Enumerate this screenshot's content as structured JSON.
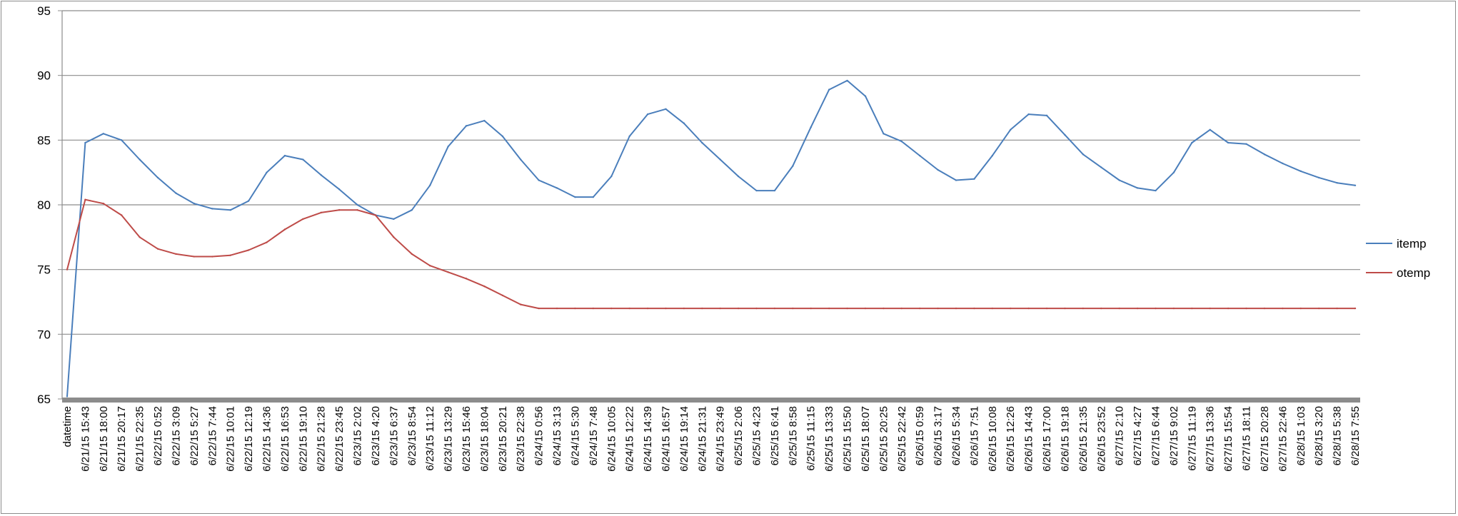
{
  "chart_data": {
    "type": "line",
    "title": "",
    "xlabel": "",
    "ylabel": "",
    "ylim": [
      65,
      95
    ],
    "yticks": [
      65,
      70,
      75,
      80,
      85,
      90,
      95
    ],
    "grid": "horizontal",
    "legend_position": "right",
    "categories": [
      "datetime",
      "6/21/15 15:43",
      "6/21/15 18:00",
      "6/21/15 20:17",
      "6/21/15 22:35",
      "6/22/15 0:52",
      "6/22/15 3:09",
      "6/22/15 5:27",
      "6/22/15 7:44",
      "6/22/15 10:01",
      "6/22/15 12:19",
      "6/22/15 14:36",
      "6/22/15 16:53",
      "6/22/15 19:10",
      "6/22/15 21:28",
      "6/22/15 23:45",
      "6/23/15 2:02",
      "6/23/15 4:20",
      "6/23/15 6:37",
      "6/23/15 8:54",
      "6/23/15 11:12",
      "6/23/15 13:29",
      "6/23/15 15:46",
      "6/23/15 18:04",
      "6/23/15 20:21",
      "6/23/15 22:38",
      "6/24/15 0:56",
      "6/24/15 3:13",
      "6/24/15 5:30",
      "6/24/15 7:48",
      "6/24/15 10:05",
      "6/24/15 12:22",
      "6/24/15 14:39",
      "6/24/15 16:57",
      "6/24/15 19:14",
      "6/24/15 21:31",
      "6/24/15 23:49",
      "6/25/15 2:06",
      "6/25/15 4:23",
      "6/25/15 6:41",
      "6/25/15 8:58",
      "6/25/15 11:15",
      "6/25/15 13:33",
      "6/25/15 15:50",
      "6/25/15 18:07",
      "6/25/15 20:25",
      "6/25/15 22:42",
      "6/26/15 0:59",
      "6/26/15 3:17",
      "6/26/15 5:34",
      "6/26/15 7:51",
      "6/26/15 10:08",
      "6/26/15 12:26",
      "6/26/15 14:43",
      "6/26/15 17:00",
      "6/26/15 19:18",
      "6/26/15 21:35",
      "6/26/15 23:52",
      "6/27/15 2:10",
      "6/27/15 4:27",
      "6/27/15 6:44",
      "6/27/15 9:02",
      "6/27/15 11:19",
      "6/27/15 13:36",
      "6/27/15 15:54",
      "6/27/15 18:11",
      "6/27/15 20:28",
      "6/27/15 22:46",
      "6/28/15 1:03",
      "6/28/15 3:20",
      "6/28/15 5:38",
      "6/28/15 7:55"
    ],
    "series": [
      {
        "name": "itemp",
        "color": "#4a7ebb",
        "values": [
          65.2,
          84.8,
          85.5,
          85.0,
          83.5,
          82.1,
          80.9,
          80.1,
          79.7,
          79.6,
          80.3,
          82.5,
          83.8,
          83.5,
          82.3,
          81.2,
          80.0,
          79.2,
          78.9,
          79.6,
          81.5,
          84.5,
          86.1,
          86.5,
          85.3,
          83.5,
          81.9,
          81.3,
          80.6,
          80.6,
          82.2,
          85.3,
          87.0,
          87.4,
          86.3,
          84.8,
          83.5,
          82.2,
          81.1,
          81.1,
          83.0,
          86.0,
          88.9,
          89.6,
          88.4,
          85.5,
          84.9,
          83.8,
          82.7,
          81.9,
          82.0,
          83.8,
          85.8,
          87.0,
          86.9,
          85.4,
          83.9,
          82.9,
          81.9,
          81.3,
          81.1,
          82.5,
          84.8,
          85.8,
          84.8,
          84.7,
          83.9,
          83.2,
          82.6,
          82.1,
          81.7,
          81.5
        ]
      },
      {
        "name": "otemp",
        "color": "#be4b48",
        "values": [
          75.0,
          80.4,
          80.1,
          79.2,
          77.5,
          76.6,
          76.2,
          76.0,
          76.0,
          76.1,
          76.5,
          77.1,
          78.1,
          78.9,
          79.4,
          79.6,
          79.6,
          79.2,
          77.5,
          76.2,
          75.3,
          74.8,
          74.3,
          73.7,
          73.0,
          72.3,
          72.0,
          72.0,
          72.0,
          72.0,
          72.0,
          72.0,
          72.0,
          72.0,
          72.0,
          72.0,
          72.0,
          72.0,
          72.0,
          72.0,
          72.0,
          72.0,
          72.0,
          72.0,
          72.0,
          72.0,
          72.0,
          72.0,
          72.0,
          72.0,
          72.0,
          72.0,
          72.0,
          72.0,
          72.0,
          72.0,
          72.0,
          72.0,
          72.0,
          72.0,
          72.0,
          72.0,
          72.0,
          72.0,
          72.0,
          72.0,
          72.0,
          72.0,
          72.0,
          72.0,
          72.0,
          72.0
        ]
      }
    ]
  }
}
